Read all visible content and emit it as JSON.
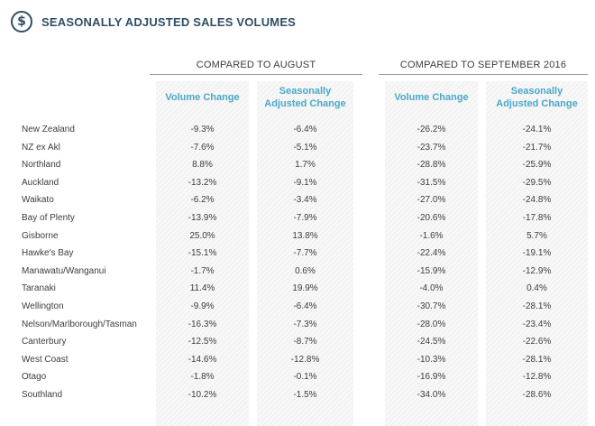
{
  "title": "SEASONALLY ADJUSTED SALES VOLUMES",
  "icon": "dollar-circle-icon",
  "group_headers": [
    "COMPARED TO AUGUST",
    "COMPARED TO SEPTEMBER 2016"
  ],
  "column_headers": [
    {
      "line1": "Volume Change",
      "line2": ""
    },
    {
      "line1": "Seasonally",
      "line2": "Adjusted Change"
    },
    {
      "line1": "Volume Change",
      "line2": ""
    },
    {
      "line1": "Seasonally",
      "line2": "Adjusted Change"
    }
  ],
  "colors": {
    "title": "#2f4e66",
    "column_header": "#4aa8c9"
  },
  "rows": [
    {
      "region": "New Zealand",
      "values": [
        "-9.3%",
        "-6.4%",
        "-26.2%",
        "-24.1%"
      ]
    },
    {
      "region": "NZ ex Akl",
      "values": [
        "-7.6%",
        "-5.1%",
        "-23.7%",
        "-21.7%"
      ]
    },
    {
      "region": "Northland",
      "values": [
        "8.8%",
        "1.7%",
        "-28.8%",
        "-25.9%"
      ]
    },
    {
      "region": "Auckland",
      "values": [
        "-13.2%",
        "-9.1%",
        "-31.5%",
        "-29.5%"
      ]
    },
    {
      "region": "Waikato",
      "values": [
        "-6.2%",
        "-3.4%",
        "-27.0%",
        "-24.8%"
      ]
    },
    {
      "region": "Bay of Plenty",
      "values": [
        "-13.9%",
        "-7.9%",
        "-20.6%",
        "-17.8%"
      ]
    },
    {
      "region": "Gisborne",
      "values": [
        "25.0%",
        "13.8%",
        "-1.6%",
        "5.7%"
      ]
    },
    {
      "region": "Hawke's Bay",
      "values": [
        "-15.1%",
        "-7.7%",
        "-22.4%",
        "-19.1%"
      ]
    },
    {
      "region": "Manawatu/Wanganui",
      "values": [
        "-1.7%",
        "0.6%",
        "-15.9%",
        "-12.9%"
      ]
    },
    {
      "region": "Taranaki",
      "values": [
        "11.4%",
        "19.9%",
        "-4.0%",
        "0.4%"
      ]
    },
    {
      "region": "Wellington",
      "values": [
        "-9.9%",
        "-6.4%",
        "-30.7%",
        "-28.1%"
      ]
    },
    {
      "region": "Nelson/Marlborough/Tasman",
      "values": [
        "-16.3%",
        "-7.3%",
        "-28.0%",
        "-23.4%"
      ]
    },
    {
      "region": "Canterbury",
      "values": [
        "-12.5%",
        "-8.7%",
        "-24.5%",
        "-22.6%"
      ]
    },
    {
      "region": "West Coast",
      "values": [
        "-14.6%",
        "-12.8%",
        "-10.3%",
        "-28.1%"
      ]
    },
    {
      "region": "Otago",
      "values": [
        "-1.8%",
        "-0.1%",
        "-16.9%",
        "-12.8%"
      ]
    },
    {
      "region": "Southland",
      "values": [
        "-10.2%",
        "-1.5%",
        "-34.0%",
        "-28.6%"
      ]
    }
  ]
}
